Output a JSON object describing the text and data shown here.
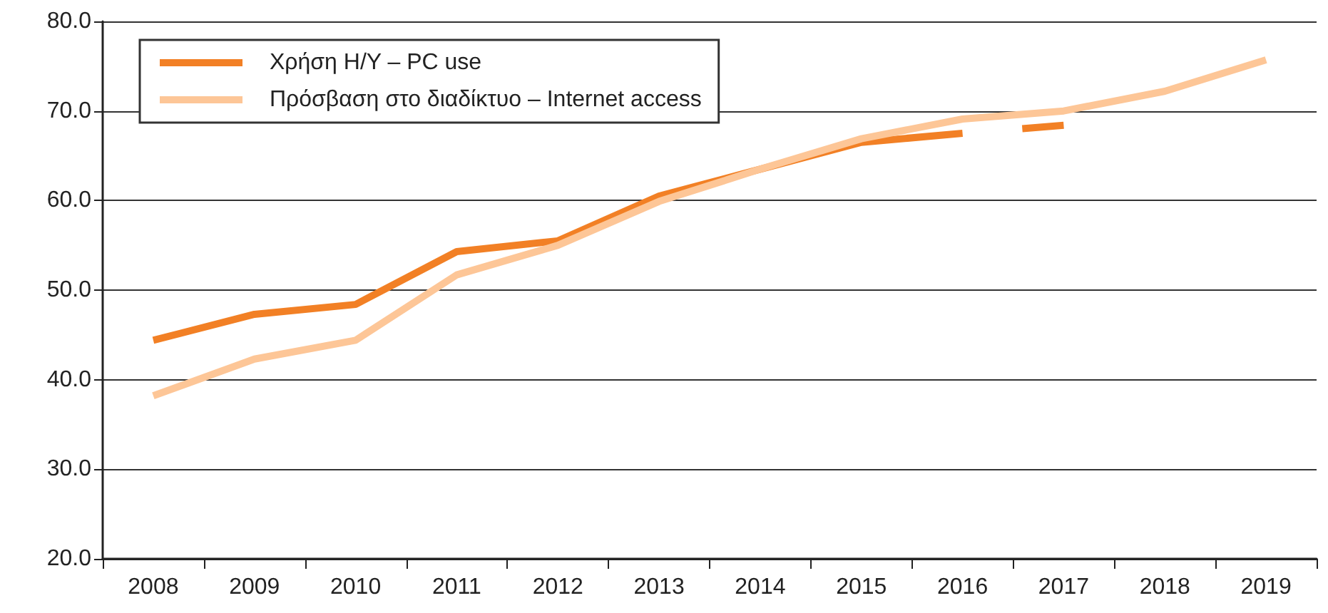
{
  "chart_data": {
    "type": "line",
    "categories": [
      "2008",
      "2009",
      "2010",
      "2011",
      "2012",
      "2013",
      "2014",
      "2015",
      "2016",
      "2017",
      "2018",
      "2019"
    ],
    "series": [
      {
        "name": "Χρήση H/Y – PC use",
        "color": "#f28025",
        "line_style": "solid",
        "values": [
          44.4,
          47.3,
          48.4,
          54.3,
          55.5,
          60.5,
          63.5,
          66.5,
          67.5,
          null,
          null,
          null
        ]
      },
      {
        "color": "#f28025",
        "line_style": "dashed",
        "values": [
          null,
          null,
          null,
          null,
          null,
          null,
          null,
          null,
          67.5,
          68.4,
          null,
          null
        ]
      },
      {
        "name": "Πρόσβαση στο διαδίκτυο – Internet access",
        "color": "#fdc697",
        "line_style": "solid",
        "values": [
          38.2,
          42.3,
          44.4,
          51.7,
          55.0,
          59.9,
          63.5,
          66.9,
          69.1,
          70.0,
          72.2,
          75.7
        ]
      }
    ],
    "ylim": [
      20,
      80
    ],
    "yticks": [
      {
        "value": 20,
        "label": "20.0"
      },
      {
        "value": 30,
        "label": "30.0"
      },
      {
        "value": 40,
        "label": "40.0"
      },
      {
        "value": 50,
        "label": "50.0"
      },
      {
        "value": 60,
        "label": "60.0"
      },
      {
        "value": 70,
        "label": "70.0"
      },
      {
        "value": 80,
        "label": "80.0"
      }
    ],
    "grid": "y",
    "legend": "top left",
    "marker": "none"
  }
}
